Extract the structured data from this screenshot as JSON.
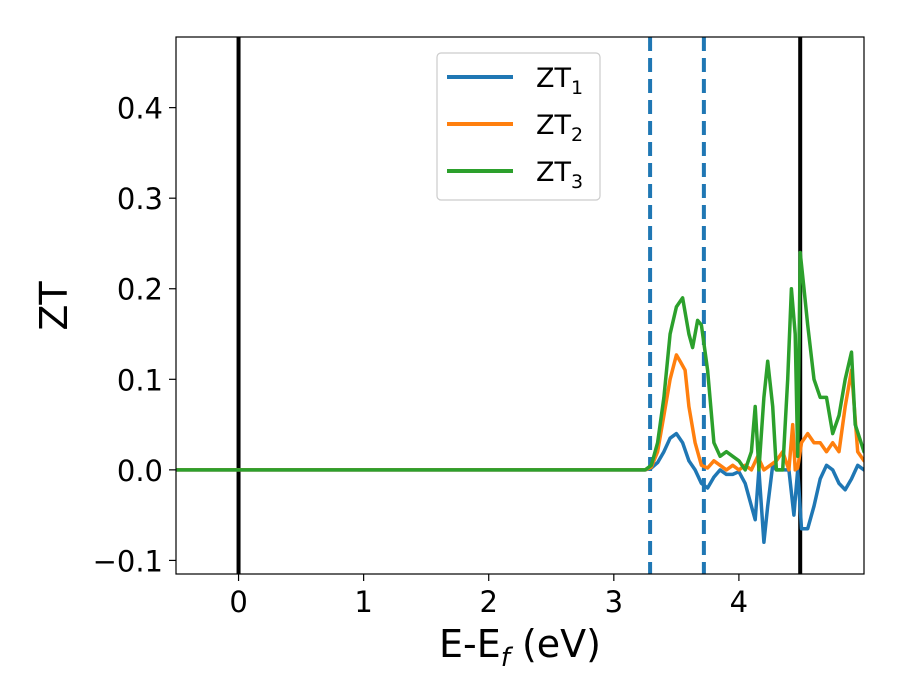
{
  "chart_data": {
    "type": "line",
    "xlabel": "E-E",
    "xlabel_sub": "f",
    "xlabel_unit": " (eV)",
    "ylabel": "ZT",
    "xlim": [
      -0.5,
      5.0
    ],
    "ylim": [
      -0.115,
      0.478
    ],
    "xticks": [
      0,
      1,
      2,
      3,
      4
    ],
    "xtick_labels": [
      "0",
      "1",
      "2",
      "3",
      "4"
    ],
    "yticks": [
      -0.1,
      0.0,
      0.1,
      0.2,
      0.3,
      0.4
    ],
    "ytick_labels": [
      "−0.1",
      "0.0",
      "0.1",
      "0.2",
      "0.3",
      "0.4"
    ],
    "grid": false,
    "legend_position": "top-center",
    "vlines": [
      {
        "x": 0.0,
        "style": "solid",
        "color": "#000000"
      },
      {
        "x": 4.49,
        "style": "solid",
        "color": "#000000"
      },
      {
        "x": 3.29,
        "style": "dashed",
        "color": "#1f77b4"
      },
      {
        "x": 3.72,
        "style": "dashed",
        "color": "#1f77b4"
      }
    ],
    "series": [
      {
        "name": "ZT",
        "subscript": "1",
        "color": "#1f77b4",
        "x": [
          -0.5,
          3.25,
          3.3,
          3.35,
          3.4,
          3.45,
          3.5,
          3.55,
          3.6,
          3.65,
          3.7,
          3.75,
          3.8,
          3.85,
          3.9,
          3.95,
          4.0,
          4.05,
          4.1,
          4.13,
          4.16,
          4.2,
          4.23,
          4.27,
          4.3,
          4.35,
          4.4,
          4.44,
          4.47,
          4.5,
          4.55,
          4.6,
          4.65,
          4.7,
          4.75,
          4.8,
          4.85,
          4.9,
          4.95,
          5.0
        ],
        "values": [
          0.0,
          0.0,
          0.002,
          0.008,
          0.02,
          0.035,
          0.04,
          0.03,
          0.01,
          0.0,
          -0.015,
          -0.02,
          -0.008,
          0.0,
          -0.005,
          -0.005,
          -0.002,
          -0.015,
          -0.04,
          -0.055,
          0.0,
          -0.08,
          -0.04,
          0.005,
          0.0,
          0.0,
          0.0,
          -0.05,
          0.0,
          -0.065,
          -0.065,
          -0.04,
          -0.01,
          0.005,
          0.0,
          -0.015,
          -0.022,
          -0.01,
          0.005,
          0.0
        ]
      },
      {
        "name": "ZT",
        "subscript": "2",
        "color": "#ff7f0e",
        "x": [
          -0.5,
          3.25,
          3.3,
          3.35,
          3.4,
          3.45,
          3.5,
          3.53,
          3.57,
          3.6,
          3.65,
          3.7,
          3.75,
          3.8,
          3.85,
          3.9,
          3.95,
          4.0,
          4.05,
          4.1,
          4.15,
          4.2,
          4.25,
          4.3,
          4.35,
          4.4,
          4.43,
          4.45,
          4.47,
          4.5,
          4.55,
          4.6,
          4.65,
          4.7,
          4.75,
          4.8,
          4.85,
          4.9,
          4.95,
          5.0
        ],
        "values": [
          0.0,
          0.0,
          0.003,
          0.02,
          0.06,
          0.1,
          0.127,
          0.12,
          0.11,
          0.07,
          0.03,
          0.005,
          0.002,
          0.01,
          0.005,
          0.0,
          0.005,
          0.0,
          0.005,
          0.0,
          0.015,
          0.0,
          0.005,
          0.01,
          0.02,
          0.0,
          0.05,
          0.0,
          0.002,
          0.03,
          0.04,
          0.03,
          0.03,
          0.02,
          0.03,
          0.02,
          0.07,
          0.11,
          0.02,
          0.01
        ]
      },
      {
        "name": "ZT",
        "subscript": "3",
        "color": "#2ca02c",
        "x": [
          -0.5,
          3.25,
          3.3,
          3.35,
          3.4,
          3.45,
          3.5,
          3.55,
          3.6,
          3.63,
          3.67,
          3.7,
          3.75,
          3.8,
          3.85,
          3.9,
          3.95,
          4.0,
          4.05,
          4.1,
          4.13,
          4.16,
          4.2,
          4.23,
          4.27,
          4.3,
          4.35,
          4.39,
          4.42,
          4.45,
          4.47,
          4.49,
          4.52,
          4.55,
          4.6,
          4.65,
          4.7,
          4.75,
          4.8,
          4.85,
          4.9,
          4.93,
          5.0
        ],
        "values": [
          0.0,
          0.0,
          0.005,
          0.03,
          0.08,
          0.15,
          0.18,
          0.19,
          0.15,
          0.135,
          0.165,
          0.16,
          0.11,
          0.03,
          0.015,
          0.02,
          0.015,
          0.01,
          0.0,
          0.02,
          0.07,
          0.0,
          0.08,
          0.12,
          0.07,
          0.0,
          0.0,
          0.1,
          0.2,
          0.15,
          0.015,
          0.24,
          0.2,
          0.16,
          0.1,
          0.08,
          0.08,
          0.04,
          0.06,
          0.1,
          0.13,
          0.05,
          0.02
        ]
      }
    ]
  }
}
